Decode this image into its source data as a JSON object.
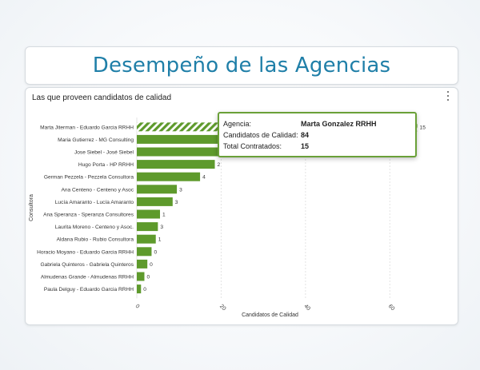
{
  "page": {
    "title": "Desempeño de las Agencias"
  },
  "card": {
    "title": "Las que proveen candidatos de calidad"
  },
  "tooltip": {
    "agency_label": "Agencia:",
    "agency_value": "Marta Gonzalez RRHH",
    "quality_label": "Candidatos de Calidad:",
    "quality_value": "84",
    "hired_label": "Total Contratados:",
    "hired_value": "15"
  },
  "chart_data": {
    "type": "bar",
    "orientation": "horizontal",
    "xlabel": "Candidatos de Calidad",
    "ylabel": "Consultora",
    "xlim": [
      0,
      70
    ],
    "xticks": [
      0,
      20,
      40,
      60
    ],
    "grid": true,
    "categories": [
      "Marta Jiterman - Eduardo Garcia RRHH",
      "Maria Gutierrez - MG Consulting",
      "Jose Siebel - José Siebel",
      "Hugo Porta - HP RRHH",
      "German Pezzela - Pezzela Consultora",
      "Ana Centeno - Centeno y Asoc",
      "Lucía Amaranto - Lucía Amaranto",
      "Ana Speranza - Speranza Consultores",
      "Laurita Moreno - Centeno y Asoc.",
      "Aldana Rubio - Rubio Consultora",
      "Horacio Moyano - Eduardo Garcia RRHH",
      "Gabriela Quinteros - Gabriela Quinteros",
      "Almudenas Grande - Almudenas RRHH",
      "Paula Delguy - Eduardo Garcia RRHH"
    ],
    "values": [
      66.5,
      21,
      20.5,
      18.5,
      15,
      9.5,
      8.5,
      5.5,
      5,
      4.5,
      3.5,
      2.5,
      1.8,
      1
    ],
    "data_labels": [
      "15",
      "",
      "",
      "2",
      "4",
      "3",
      "3",
      "1",
      "3",
      "1",
      "0",
      "0",
      "0",
      "0"
    ],
    "hatched_index": 0,
    "bar_color": "#5e9a2c"
  }
}
